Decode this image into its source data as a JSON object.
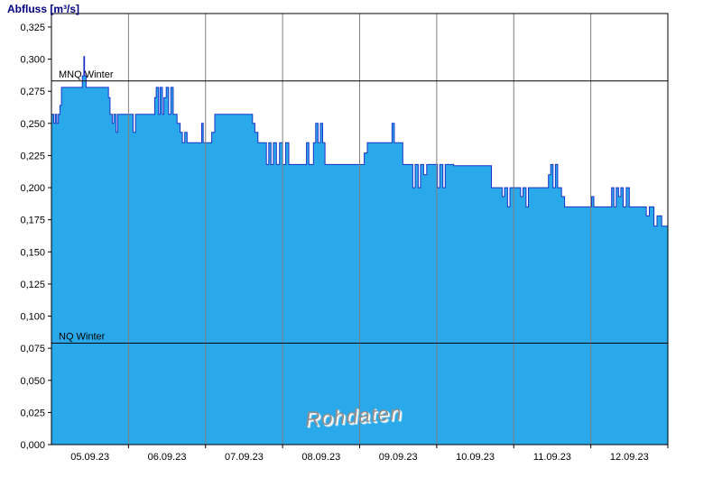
{
  "page": {
    "title": "Abfluss [m³/s]"
  },
  "colors": {
    "area_fill": "#29a9ea",
    "series_line": "#1b32c8",
    "grid": "#7f7f7f",
    "axis": "#000000",
    "reference_line": "#000000",
    "title_text": "#00007f",
    "watermark_text": "#8f8f8f",
    "background": "#ffffff"
  },
  "chart_data": {
    "type": "area",
    "title": "Abfluss [m³/s]",
    "ylabel": "Abfluss [m³/s]",
    "xlabel": "",
    "watermark": "Rohdaten",
    "ylim": [
      0,
      0.325
    ],
    "ytick_step": 0.025,
    "ytick_labels": [
      "0,000",
      "0,025",
      "0,050",
      "0,075",
      "0,100",
      "0,125",
      "0,150",
      "0,175",
      "0,200",
      "0,225",
      "0,250",
      "0,275",
      "0,300",
      "0,325"
    ],
    "x_range_days": [
      0,
      8
    ],
    "x_tick_labels": [
      "05.09.23",
      "06.09.23",
      "07.09.23",
      "08.09.23",
      "09.09.23",
      "10.09.23",
      "11.09.23",
      "12.09.23"
    ],
    "grid": "vertical-day-lines",
    "legend_position": "none",
    "reference_lines": [
      {
        "label": "MNQ Winter",
        "value": 0.283
      },
      {
        "label": "NQ Winter",
        "value": 0.079
      }
    ],
    "series": [
      {
        "name": "Abfluss Rohdaten",
        "unit": "m³/s",
        "points": [
          [
            0.0,
            0.257
          ],
          [
            0.03,
            0.25
          ],
          [
            0.05,
            0.257
          ],
          [
            0.07,
            0.25
          ],
          [
            0.09,
            0.257
          ],
          [
            0.11,
            0.264
          ],
          [
            0.13,
            0.278
          ],
          [
            0.38,
            0.278
          ],
          [
            0.4,
            0.287
          ],
          [
            0.42,
            0.302
          ],
          [
            0.43,
            0.287
          ],
          [
            0.45,
            0.278
          ],
          [
            0.72,
            0.278
          ],
          [
            0.74,
            0.27
          ],
          [
            0.76,
            0.257
          ],
          [
            0.79,
            0.25
          ],
          [
            0.81,
            0.257
          ],
          [
            0.84,
            0.243
          ],
          [
            0.86,
            0.257
          ],
          [
            1.04,
            0.257
          ],
          [
            1.06,
            0.243
          ],
          [
            1.09,
            0.257
          ],
          [
            1.32,
            0.257
          ],
          [
            1.34,
            0.27
          ],
          [
            1.36,
            0.278
          ],
          [
            1.39,
            0.257
          ],
          [
            1.41,
            0.278
          ],
          [
            1.44,
            0.257
          ],
          [
            1.46,
            0.27
          ],
          [
            1.49,
            0.278
          ],
          [
            1.52,
            0.257
          ],
          [
            1.55,
            0.278
          ],
          [
            1.58,
            0.257
          ],
          [
            1.63,
            0.25
          ],
          [
            1.67,
            0.243
          ],
          [
            1.7,
            0.235
          ],
          [
            1.73,
            0.243
          ],
          [
            1.76,
            0.235
          ],
          [
            1.93,
            0.235
          ],
          [
            1.95,
            0.25
          ],
          [
            1.97,
            0.235
          ],
          [
            2.08,
            0.243
          ],
          [
            2.12,
            0.257
          ],
          [
            2.58,
            0.257
          ],
          [
            2.61,
            0.25
          ],
          [
            2.64,
            0.243
          ],
          [
            2.68,
            0.235
          ],
          [
            2.76,
            0.235
          ],
          [
            2.79,
            0.218
          ],
          [
            2.82,
            0.235
          ],
          [
            2.85,
            0.218
          ],
          [
            2.88,
            0.235
          ],
          [
            2.92,
            0.218
          ],
          [
            2.96,
            0.235
          ],
          [
            3.0,
            0.218
          ],
          [
            3.04,
            0.235
          ],
          [
            3.08,
            0.218
          ],
          [
            3.28,
            0.218
          ],
          [
            3.31,
            0.235
          ],
          [
            3.34,
            0.218
          ],
          [
            3.4,
            0.235
          ],
          [
            3.43,
            0.25
          ],
          [
            3.46,
            0.235
          ],
          [
            3.49,
            0.25
          ],
          [
            3.52,
            0.235
          ],
          [
            3.55,
            0.218
          ],
          [
            4.02,
            0.218
          ],
          [
            4.06,
            0.227
          ],
          [
            4.1,
            0.235
          ],
          [
            4.38,
            0.235
          ],
          [
            4.42,
            0.25
          ],
          [
            4.45,
            0.235
          ],
          [
            4.52,
            0.235
          ],
          [
            4.56,
            0.218
          ],
          [
            4.66,
            0.218
          ],
          [
            4.69,
            0.2
          ],
          [
            4.72,
            0.218
          ],
          [
            4.76,
            0.2
          ],
          [
            4.79,
            0.218
          ],
          [
            4.83,
            0.21
          ],
          [
            4.87,
            0.218
          ],
          [
            4.98,
            0.218
          ],
          [
            5.01,
            0.2
          ],
          [
            5.04,
            0.218
          ],
          [
            5.08,
            0.2
          ],
          [
            5.11,
            0.218
          ],
          [
            5.22,
            0.217
          ],
          [
            5.68,
            0.217
          ],
          [
            5.71,
            0.2
          ],
          [
            5.82,
            0.2
          ],
          [
            5.85,
            0.193
          ],
          [
            5.88,
            0.2
          ],
          [
            5.92,
            0.185
          ],
          [
            5.95,
            0.2
          ],
          [
            6.06,
            0.2
          ],
          [
            6.09,
            0.193
          ],
          [
            6.12,
            0.2
          ],
          [
            6.16,
            0.185
          ],
          [
            6.19,
            0.2
          ],
          [
            6.42,
            0.2
          ],
          [
            6.45,
            0.21
          ],
          [
            6.48,
            0.218
          ],
          [
            6.51,
            0.2
          ],
          [
            6.54,
            0.218
          ],
          [
            6.57,
            0.2
          ],
          [
            6.62,
            0.193
          ],
          [
            6.66,
            0.185
          ],
          [
            6.98,
            0.185
          ],
          [
            7.01,
            0.193
          ],
          [
            7.04,
            0.185
          ],
          [
            7.24,
            0.185
          ],
          [
            7.27,
            0.2
          ],
          [
            7.3,
            0.185
          ],
          [
            7.33,
            0.2
          ],
          [
            7.36,
            0.193
          ],
          [
            7.39,
            0.2
          ],
          [
            7.42,
            0.185
          ],
          [
            7.46,
            0.2
          ],
          [
            7.5,
            0.185
          ],
          [
            7.68,
            0.185
          ],
          [
            7.72,
            0.178
          ],
          [
            7.76,
            0.185
          ],
          [
            7.82,
            0.17
          ],
          [
            7.86,
            0.178
          ],
          [
            7.92,
            0.17
          ],
          [
            8.0,
            0.17
          ]
        ]
      }
    ]
  }
}
